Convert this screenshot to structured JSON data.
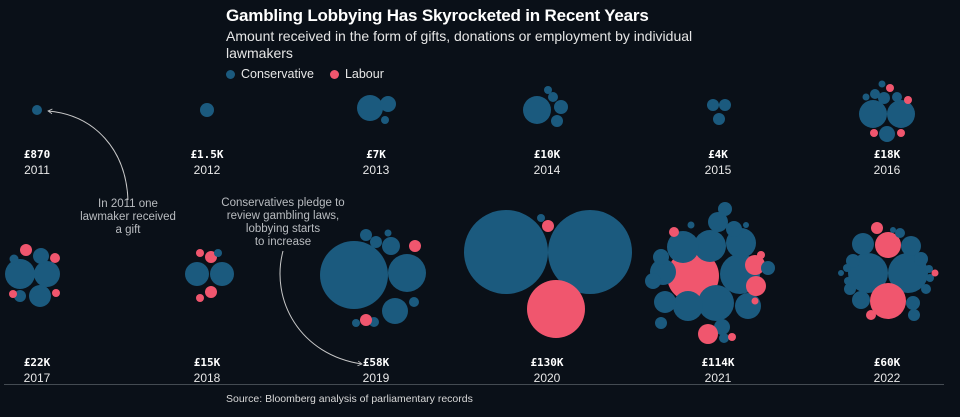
{
  "header": {
    "title": "Gambling Lobbying Has Skyrocketed in Recent Years",
    "subtitle": "Amount received in the form of gifts, donations or employment by individual lawmakers"
  },
  "legend": [
    {
      "label": "Conservative",
      "color": "#1b5a7e"
    },
    {
      "label": "Labour",
      "color": "#f0566e"
    }
  ],
  "annotations": [
    {
      "text": [
        "In 2011 one",
        "lawmaker received",
        "a gift"
      ],
      "target_year": "2011"
    },
    {
      "text": [
        "Conservatives pledge to",
        "review gambling laws,",
        "lobbying starts",
        "to increase"
      ],
      "target_year": "2019"
    }
  ],
  "source": "Source: Bloomberg analysis of parliamentary records",
  "chart_data": {
    "type": "packed-bubble",
    "title": "Gambling Lobbying Has Skyrocketed in Recent Years",
    "subtitle": "Amount received in the form of gifts, donations or employment by individual lawmakers",
    "legend": [
      "Conservative",
      "Labour"
    ],
    "legend_position": "top-left",
    "colors": {
      "Conservative": "#1b5a7e",
      "Labour": "#f0566e"
    },
    "years": [
      {
        "year": "2011",
        "total_label": "£870",
        "total": 870
      },
      {
        "year": "2012",
        "total_label": "£1.5K",
        "total": 1500
      },
      {
        "year": "2013",
        "total_label": "£7K",
        "total": 7000
      },
      {
        "year": "2014",
        "total_label": "£10K",
        "total": 10000
      },
      {
        "year": "2015",
        "total_label": "£4K",
        "total": 4000
      },
      {
        "year": "2016",
        "total_label": "£18K",
        "total": 18000
      },
      {
        "year": "2017",
        "total_label": "£22K",
        "total": 22000
      },
      {
        "year": "2018",
        "total_label": "£15K",
        "total": 15000
      },
      {
        "year": "2019",
        "total_label": "£58K",
        "total": 58000
      },
      {
        "year": "2020",
        "total_label": "£130K",
        "total": 130000
      },
      {
        "year": "2021",
        "total_label": "£114K",
        "total": 114000
      },
      {
        "year": "2022",
        "total_label": "£60K",
        "total": 60000
      }
    ]
  }
}
